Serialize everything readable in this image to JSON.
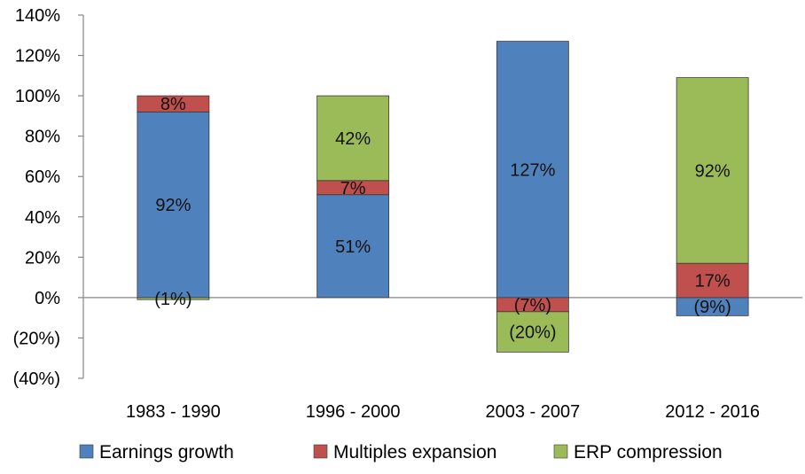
{
  "chart_data": {
    "type": "bar",
    "stacked": true,
    "categories": [
      "1983 - 1990",
      "1996 - 2000",
      "2003 - 2007",
      "2012 - 2016"
    ],
    "series": [
      {
        "name": "Earnings growth",
        "color": "#4f81bd",
        "values": [
          92,
          51,
          127,
          -9
        ],
        "labels": [
          "92%",
          "51%",
          "127%",
          "(9%)"
        ]
      },
      {
        "name": "Multiples expansion",
        "color": "#c0504d",
        "values": [
          8,
          7,
          -7,
          17
        ],
        "labels": [
          "8%",
          "7%",
          "(7%)",
          "17%"
        ]
      },
      {
        "name": "ERP compression",
        "color": "#9bbb59",
        "values": [
          -1,
          42,
          -20,
          92
        ],
        "labels": [
          "(1%)",
          "42%",
          "(20%)",
          "92%"
        ]
      }
    ],
    "ylim": [
      -40,
      140
    ],
    "yticks": [
      140,
      120,
      100,
      80,
      60,
      40,
      20,
      0,
      -20,
      -40
    ],
    "ytick_labels": [
      "140%",
      "120%",
      "100%",
      "80%",
      "60%",
      "40%",
      "20%",
      "0%",
      "(20%)",
      "(40%)"
    ],
    "grid": false,
    "legend_position": "bottom"
  }
}
